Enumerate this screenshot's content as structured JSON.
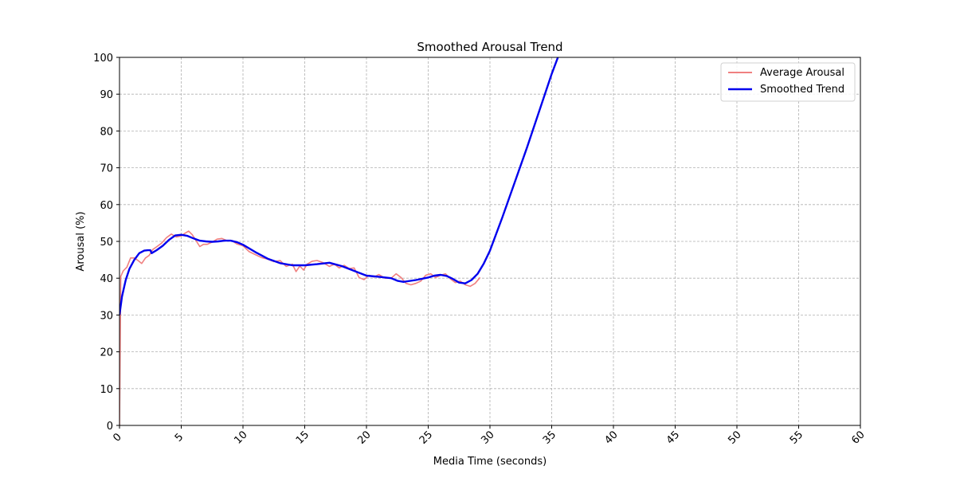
{
  "chart_data": {
    "type": "line",
    "title": "Smoothed Arousal Trend",
    "xlabel": "Media Time (seconds)",
    "ylabel": "Arousal (%)",
    "xlim": [
      0,
      60
    ],
    "ylim": [
      0,
      100
    ],
    "xticks": [
      0,
      5,
      10,
      15,
      20,
      25,
      30,
      35,
      40,
      45,
      50,
      55,
      60
    ],
    "yticks": [
      0,
      10,
      20,
      30,
      40,
      50,
      60,
      70,
      80,
      90,
      100
    ],
    "grid": true,
    "legend_position": "top-right",
    "series": [
      {
        "name": "Average Arousal",
        "color": "#f08080",
        "x": [
          0,
          0.1,
          0.3,
          0.6,
          0.9,
          1.2,
          1.5,
          1.8,
          2.1,
          2.4,
          2.7,
          3.0,
          3.4,
          3.8,
          4.2,
          4.6,
          5.0,
          5.3,
          5.6,
          5.9,
          6.2,
          6.5,
          6.8,
          7.1,
          7.5,
          7.9,
          8.3,
          8.7,
          9.1,
          9.5,
          10.0,
          10.5,
          11.0,
          11.5,
          12.0,
          12.5,
          13.0,
          13.5,
          14.0,
          14.3,
          14.6,
          14.9,
          15.2,
          15.6,
          16.0,
          16.5,
          17.0,
          17.4,
          17.8,
          18.2,
          18.6,
          19.0,
          19.4,
          19.8,
          20.2,
          20.6,
          21.0,
          21.5,
          22.0,
          22.4,
          22.8,
          23.2,
          23.6,
          24.0,
          24.4,
          24.8,
          25.2,
          25.6,
          26.0,
          26.4,
          26.8,
          27.2,
          27.6,
          28.0,
          28.4,
          28.8,
          29.2
        ],
        "y": [
          0,
          40.5,
          42,
          43,
          45.5,
          45.5,
          44.8,
          44,
          45.5,
          46.2,
          47.8,
          48.5,
          49.5,
          51,
          52,
          51.2,
          51.5,
          52.2,
          52.8,
          51.8,
          50.2,
          48.6,
          49.2,
          49.2,
          49.8,
          50.6,
          50.8,
          50.2,
          50.2,
          49.3,
          48.8,
          47.2,
          46.4,
          45.6,
          45.2,
          44.5,
          44.8,
          43.2,
          43.8,
          41.8,
          43.3,
          42.2,
          43.8,
          44.6,
          44.8,
          44.2,
          43.2,
          43.8,
          42.8,
          43.5,
          42.6,
          42.8,
          40.2,
          39.6,
          40.8,
          40.3,
          41,
          40,
          40,
          41.2,
          40.2,
          38.6,
          38.2,
          38.6,
          39.2,
          40.8,
          41.2,
          40.2,
          40.8,
          41.2,
          39.8,
          38.8,
          39.2,
          38.2,
          37.8,
          38.6,
          40.2
        ]
      },
      {
        "name": "Smoothed Trend",
        "color": "#0000ee",
        "x": [
          0,
          0.2,
          0.5,
          0.8,
          1.2,
          1.6,
          2.0,
          2.3,
          2.5,
          2.6,
          3.0,
          3.5,
          4.0,
          4.5,
          5.0,
          5.5,
          6.0,
          6.5,
          7.0,
          7.5,
          8.0,
          8.5,
          9.0,
          9.5,
          10.0,
          11.0,
          12.0,
          13.0,
          14.0,
          15.0,
          16.0,
          17.0,
          18.0,
          19.0,
          20.0,
          21.0,
          22.0,
          22.5,
          23.0,
          24.0,
          25.0,
          25.5,
          26.0,
          26.5,
          27.0,
          27.5,
          28.0,
          28.5,
          29.0,
          29.5,
          30.0,
          31.0,
          32.0,
          33.0,
          34.0,
          35.0,
          35.5
        ],
        "y": [
          30,
          35,
          39.5,
          42.5,
          45,
          46.8,
          47.5,
          47.6,
          47.6,
          46.8,
          47.6,
          48.8,
          50.4,
          51.6,
          51.8,
          51.5,
          50.8,
          50.2,
          50,
          49.9,
          50,
          50.2,
          50.2,
          49.8,
          49.1,
          47.1,
          45.3,
          44.1,
          43.5,
          43.5,
          43.8,
          44.2,
          43.3,
          42,
          40.7,
          40.4,
          40,
          39.3,
          39,
          39.5,
          40.2,
          40.7,
          40.9,
          40.6,
          39.8,
          38.8,
          38.6,
          39.5,
          41.2,
          44,
          47.5,
          56.5,
          66,
          75.5,
          85.5,
          95.5,
          100
        ]
      }
    ]
  }
}
